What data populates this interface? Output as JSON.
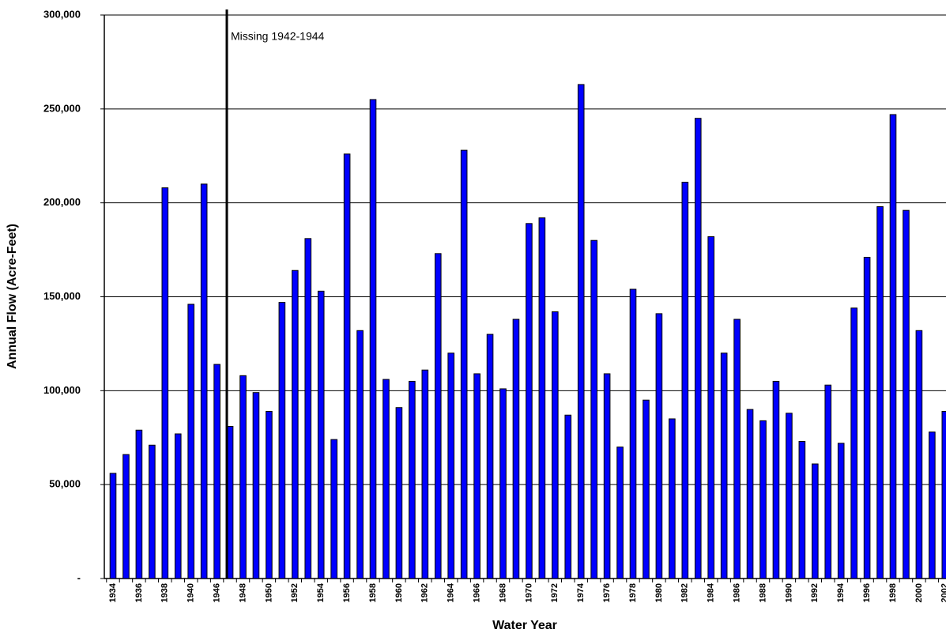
{
  "chart_data": {
    "type": "bar",
    "categories": [
      "1934",
      null,
      "1936",
      null,
      "1938",
      null,
      "1940",
      null,
      "1946",
      null,
      "1948",
      null,
      "1950",
      null,
      "1952",
      null,
      "1954",
      null,
      "1956",
      null,
      "1958",
      null,
      "1960",
      null,
      "1962",
      null,
      "1964",
      null,
      "1966",
      null,
      "1968",
      null,
      "1970",
      null,
      "1972",
      null,
      "1974",
      null,
      "1976",
      null,
      "1978",
      null,
      "1980",
      null,
      "1982",
      null,
      "1984",
      null,
      "1986",
      null,
      "1988",
      null,
      "1990",
      null,
      "1992",
      null,
      "1994",
      null,
      "1996",
      null,
      "1998",
      null,
      "2000",
      null,
      "2002"
    ],
    "values": [
      56000,
      66000,
      79000,
      71000,
      208000,
      77000,
      146000,
      210000,
      114000,
      81000,
      108000,
      99000,
      89000,
      147000,
      164000,
      181000,
      153000,
      74000,
      226000,
      132000,
      255000,
      106000,
      91000,
      105000,
      111000,
      173000,
      120000,
      228000,
      109000,
      130000,
      101000,
      138000,
      189000,
      192000,
      142000,
      87000,
      263000,
      180000,
      109000,
      70000,
      154000,
      95000,
      141000,
      85000,
      211000,
      245000,
      182000,
      120000,
      138000,
      90000,
      84000,
      105000,
      88000,
      73000,
      61000,
      103000,
      72000,
      144000,
      171000,
      198000,
      247000,
      196000,
      132000,
      78000,
      89000
    ],
    "color": "#0000ff",
    "ylim": [
      0,
      300000
    ],
    "yticks": [
      {
        "value": 0,
        "label": "-"
      },
      {
        "value": 50000,
        "label": "50,000"
      },
      {
        "value": 100000,
        "label": "100,000"
      },
      {
        "value": 150000,
        "label": "150,000"
      },
      {
        "value": 200000,
        "label": "200,000"
      },
      {
        "value": 250000,
        "label": "250,000"
      },
      {
        "value": 300000,
        "label": "300,000"
      }
    ],
    "grid": true,
    "xlabel": "Water Year",
    "ylabel": "Annual Flow (Acre-Feet)",
    "annotation": "Missing 1942-1944"
  }
}
